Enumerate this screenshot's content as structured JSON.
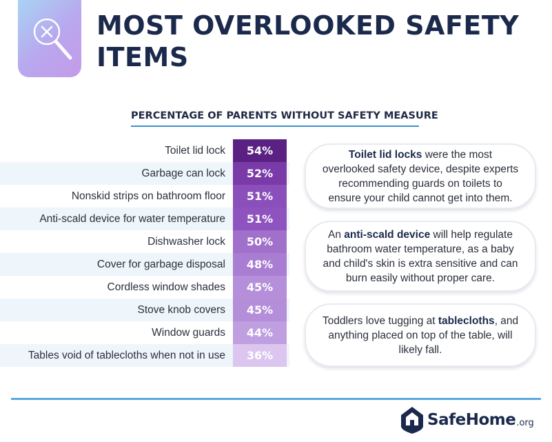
{
  "title": "MOST OVERLOOKED SAFETY ITEMS",
  "icon": "magnifier-with-x-icon",
  "chart_data": {
    "type": "table",
    "subtitle": "PERCENTAGE OF PARENTS WITHOUT SAFETY MEASURE",
    "categories": [
      "Toilet lid lock",
      "Garbage can lock",
      "Nonskid strips on bathroom floor",
      "Anti-scald device for water temperature",
      "Dishwasher lock",
      "Cover for garbage disposal",
      "Cordless window shades",
      "Stove knob covers",
      "Window guards",
      "Tables void of tablecloths when not in use"
    ],
    "values": [
      54,
      52,
      51,
      51,
      50,
      48,
      45,
      45,
      44,
      36
    ],
    "value_labels": [
      "54%",
      "52%",
      "51%",
      "51%",
      "50%",
      "48%",
      "45%",
      "45%",
      "44%",
      "36%"
    ],
    "unit": "%",
    "colors": [
      "#5a2182",
      "#7a3aa8",
      "#8b4fbb",
      "#8e53be",
      "#a070cb",
      "#a97dd2",
      "#b58fd9",
      "#b48ed9",
      "#bf9fe0",
      "#dcc6f0"
    ]
  },
  "callouts": [
    {
      "pre": "",
      "bold": "Toilet lid locks",
      "post": " were the most overlooked safety device, despite experts recommending guards on toilets to ensure your child cannot get into them."
    },
    {
      "pre": "An ",
      "bold": "anti-scald device",
      "post": " will help regulate bathroom water temperature, as a baby and child's skin is extra sensitive and can burn easily without proper care."
    },
    {
      "pre": "Toddlers love tugging at ",
      "bold": "tablecloths",
      "post": ", and anything placed on top of the table, will likely fall."
    }
  ],
  "footer": {
    "brand": "SafeHome",
    "suffix": ".org",
    "icon": "house-shield-icon",
    "colors": {
      "accent": "#5aa8dc",
      "navy": "#1b2a4c"
    }
  }
}
